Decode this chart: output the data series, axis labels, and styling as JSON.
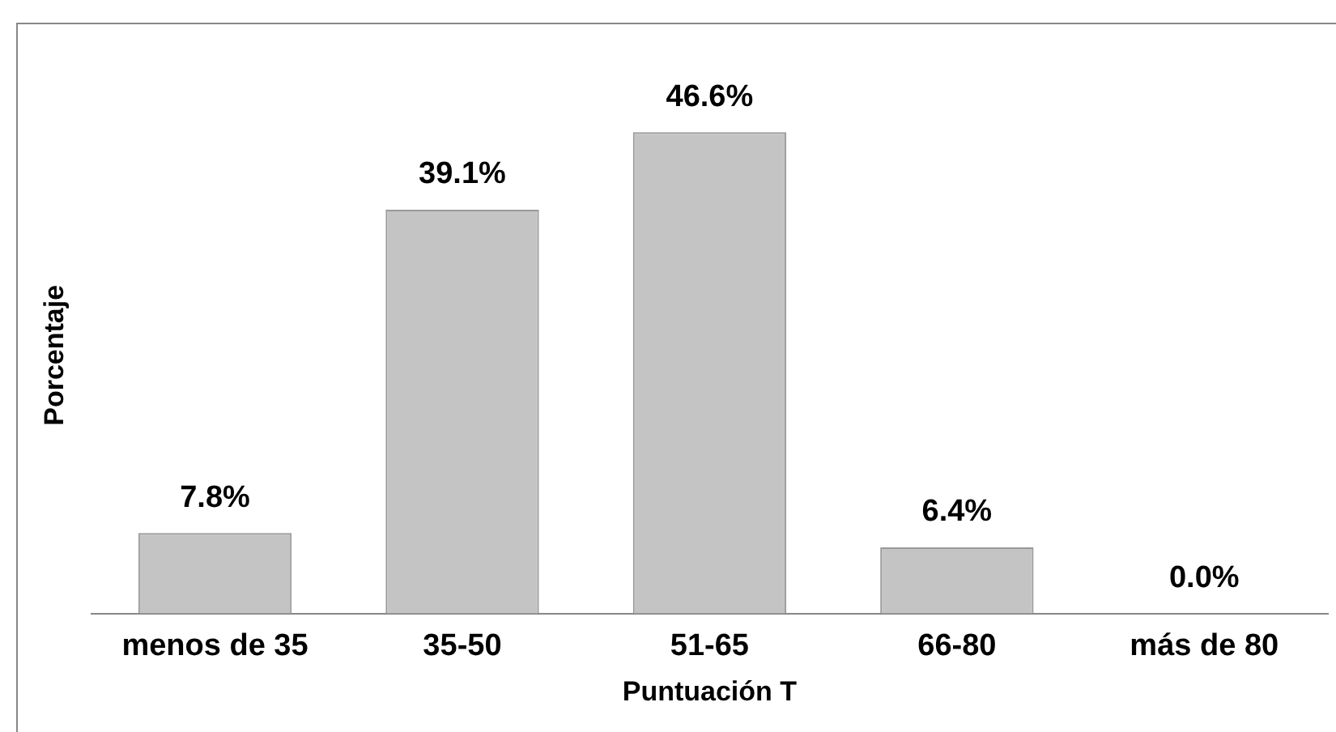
{
  "chart_data": {
    "type": "bar",
    "xlabel": "Puntuación T",
    "ylabel": "Porcentaje",
    "categories": [
      "menos de 35",
      "35-50",
      "51-65",
      "66-80",
      "más de 80"
    ],
    "values": [
      7.8,
      39.1,
      46.6,
      6.4,
      0.0
    ],
    "color": "#c4c4c4",
    "value_labels": [
      "7.8%",
      "39.1%",
      "46.6%",
      "6.4%",
      "0.0%"
    ],
    "grid": false,
    "legend": false
  }
}
